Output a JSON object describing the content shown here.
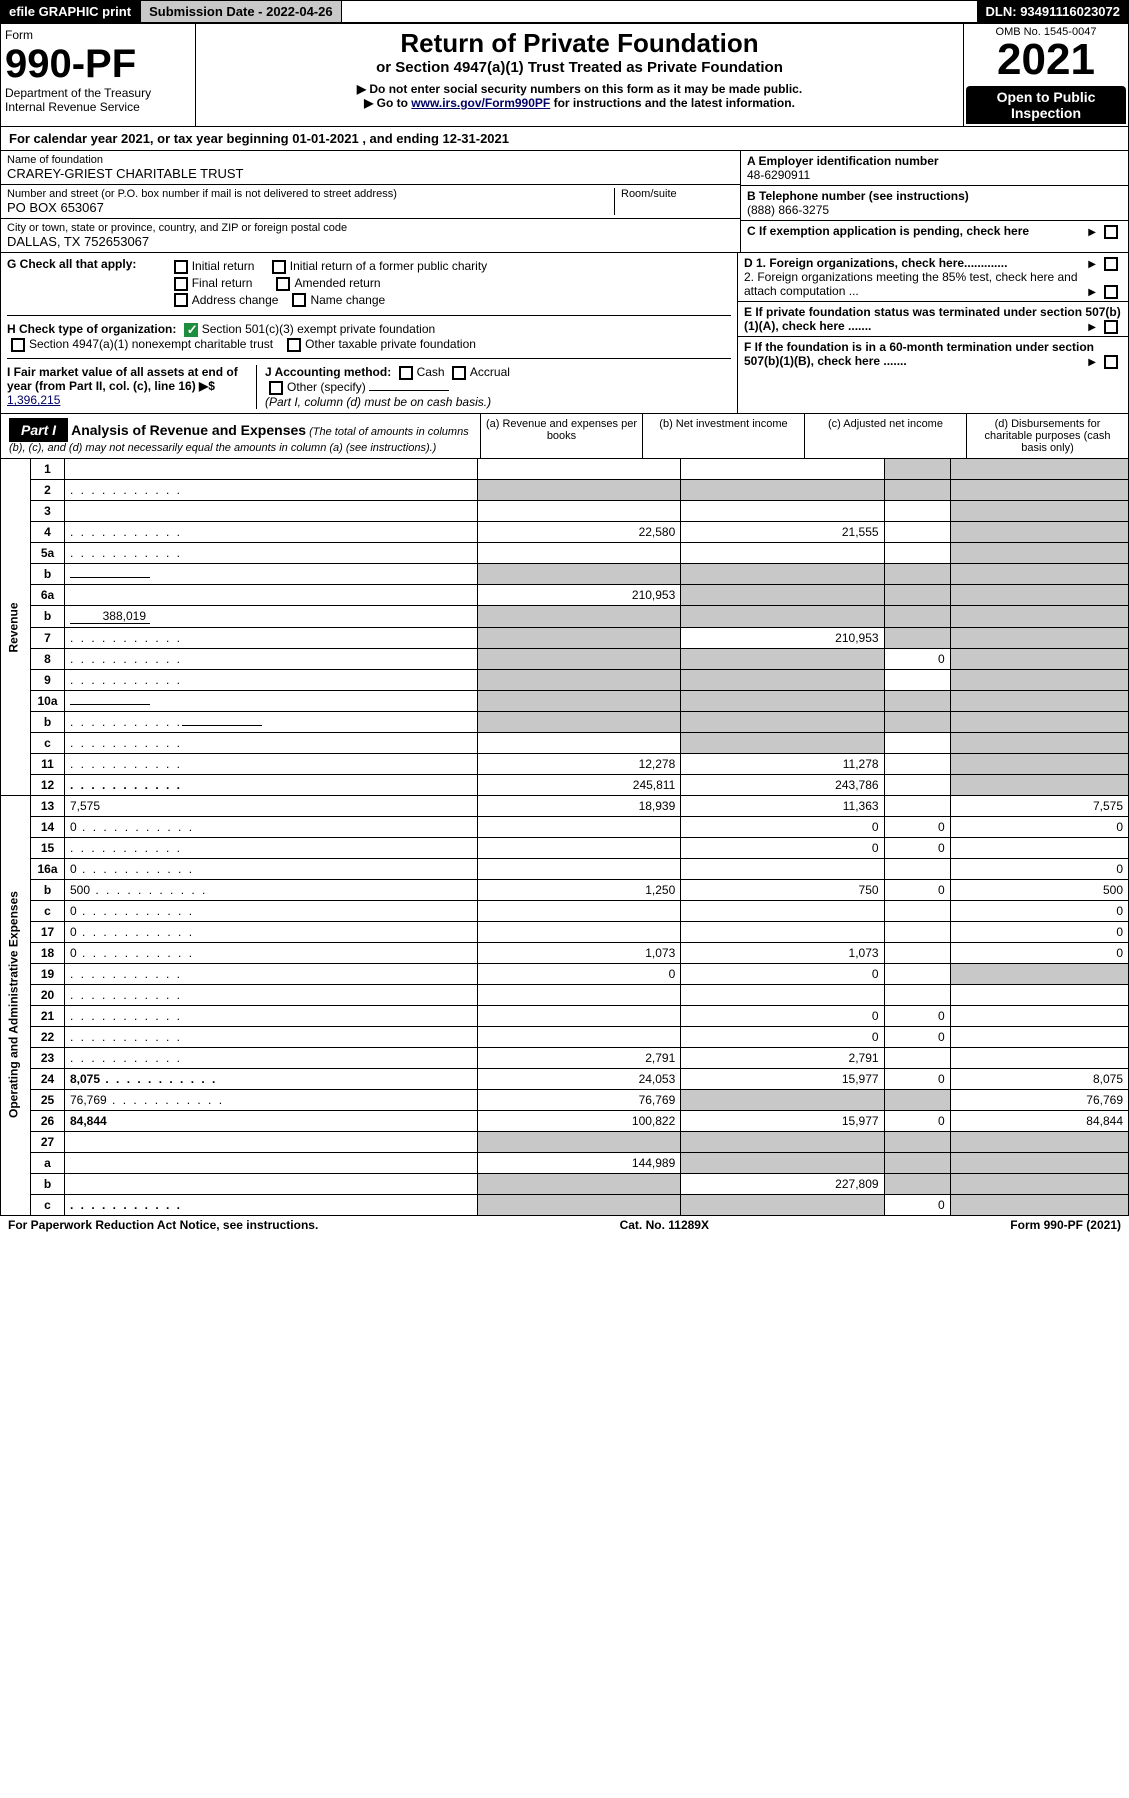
{
  "header": {
    "efile": "efile GRAPHIC print",
    "submission": "Submission Date - 2022-04-26",
    "dln": "DLN: 93491116023072"
  },
  "form": {
    "form_label": "Form",
    "form_num": "990-PF",
    "dept": "Department of the Treasury",
    "irs": "Internal Revenue Service",
    "title": "Return of Private Foundation",
    "subtitle": "or Section 4947(a)(1) Trust Treated as Private Foundation",
    "note1": "▶ Do not enter social security numbers on this form as it may be made public.",
    "note2_pre": "▶ Go to ",
    "note2_link": "www.irs.gov/Form990PF",
    "note2_post": " for instructions and the latest information.",
    "omb": "OMB No. 1545-0047",
    "year": "2021",
    "open": "Open to Public Inspection"
  },
  "calyear": "For calendar year 2021, or tax year beginning 01-01-2021               , and ending 12-31-2021",
  "entity": {
    "name_lbl": "Name of foundation",
    "name": "CRAREY-GRIEST CHARITABLE TRUST",
    "addr_lbl": "Number and street (or P.O. box number if mail is not delivered to street address)",
    "room_lbl": "Room/suite",
    "addr": "PO BOX 653067",
    "city_lbl": "City or town, state or province, country, and ZIP or foreign postal code",
    "city": "DALLAS, TX  752653067",
    "ein_lbl": "A Employer identification number",
    "ein": "48-6290911",
    "tel_lbl": "B Telephone number (see instructions)",
    "tel": "(888) 866-3275",
    "c": "C If exemption application is pending, check here",
    "d1": "D 1. Foreign organizations, check here.............",
    "d2": "2. Foreign organizations meeting the 85% test, check here and attach computation ...",
    "e": "E If private foundation status was terminated under section 507(b)(1)(A), check here .......",
    "f": "F If the foundation is in a 60-month termination under section 507(b)(1)(B), check here .......",
    "g_lbl": "G Check all that apply:",
    "g_opts": [
      "Initial return",
      "Final return",
      "Address change",
      "Initial return of a former public charity",
      "Amended return",
      "Name change"
    ],
    "h_lbl": "H Check type of organization:",
    "h1": "Section 501(c)(3) exempt private foundation",
    "h2": "Section 4947(a)(1) nonexempt charitable trust",
    "h3": "Other taxable private foundation",
    "i_lbl": "I Fair market value of all assets at end of year (from Part II, col. (c), line 16) ▶$ ",
    "i_val": "1,396,215",
    "j_lbl": "J Accounting method:",
    "j_opts": [
      "Cash",
      "Accrual"
    ],
    "j_other": "Other (specify)",
    "j_note": "(Part I, column (d) must be on cash basis.)"
  },
  "part1": {
    "title": "Part I",
    "head": "Analysis of Revenue and Expenses",
    "head_note": "(The total of amounts in columns (b), (c), and (d) may not necessarily equal the amounts in column (a) (see instructions).)",
    "cols": {
      "a": "(a) Revenue and expenses per books",
      "b": "(b) Net investment income",
      "c": "(c) Adjusted net income",
      "d": "(d) Disbursements for charitable purposes (cash basis only)"
    }
  },
  "side": {
    "rev": "Revenue",
    "exp": "Operating and Administrative Expenses"
  },
  "rows": [
    {
      "n": "1",
      "d": "",
      "a": "",
      "b": "",
      "c": "",
      "cf": true,
      "df": true
    },
    {
      "n": "2",
      "d": "",
      "dots": true,
      "a": "",
      "b": "",
      "c": "",
      "af": true,
      "bf": true,
      "cf": true,
      "df": true
    },
    {
      "n": "3",
      "d": "",
      "a": "",
      "b": "",
      "c": "",
      "df": true
    },
    {
      "n": "4",
      "d": "",
      "dots": true,
      "a": "22,580",
      "b": "21,555",
      "c": "",
      "df": true
    },
    {
      "n": "5a",
      "d": "",
      "dots": true,
      "a": "",
      "b": "",
      "c": "",
      "df": true
    },
    {
      "n": "b",
      "d": "",
      "inline": "",
      "a": "",
      "b": "",
      "c": "",
      "af": true,
      "bf": true,
      "cf": true,
      "df": true
    },
    {
      "n": "6a",
      "d": "",
      "a": "210,953",
      "b": "",
      "c": "",
      "bf": true,
      "cf": true,
      "df": true
    },
    {
      "n": "b",
      "d": "",
      "inline": "388,019",
      "a": "",
      "b": "",
      "c": "",
      "af": true,
      "bf": true,
      "cf": true,
      "df": true
    },
    {
      "n": "7",
      "d": "",
      "dots": true,
      "a": "",
      "b": "210,953",
      "c": "",
      "af": true,
      "cf": true,
      "df": true
    },
    {
      "n": "8",
      "d": "",
      "dots": true,
      "a": "",
      "b": "",
      "c": "0",
      "af": true,
      "bf": true,
      "df": true
    },
    {
      "n": "9",
      "d": "",
      "dots": true,
      "a": "",
      "b": "",
      "c": "",
      "af": true,
      "bf": true,
      "df": true
    },
    {
      "n": "10a",
      "d": "",
      "inline": "",
      "a": "",
      "b": "",
      "c": "",
      "af": true,
      "bf": true,
      "cf": true,
      "df": true
    },
    {
      "n": "b",
      "d": "",
      "dots": true,
      "inline": "",
      "a": "",
      "b": "",
      "c": "",
      "af": true,
      "bf": true,
      "cf": true,
      "df": true
    },
    {
      "n": "c",
      "d": "",
      "dots": true,
      "a": "",
      "b": "",
      "c": "",
      "bf": true,
      "df": true
    },
    {
      "n": "11",
      "d": "",
      "dots": true,
      "a": "12,278",
      "b": "11,278",
      "c": "",
      "df": true
    },
    {
      "n": "12",
      "d": "",
      "dots": true,
      "bold": true,
      "a": "245,811",
      "b": "243,786",
      "c": "",
      "df": true
    },
    {
      "n": "13",
      "d": "7,575",
      "a": "18,939",
      "b": "11,363",
      "c": ""
    },
    {
      "n": "14",
      "d": "0",
      "dots": true,
      "a": "",
      "b": "0",
      "c": "0"
    },
    {
      "n": "15",
      "d": "",
      "dots": true,
      "a": "",
      "b": "0",
      "c": "0"
    },
    {
      "n": "16a",
      "d": "0",
      "dots": true,
      "a": "",
      "b": "",
      "c": ""
    },
    {
      "n": "b",
      "d": "500",
      "dots": true,
      "a": "1,250",
      "b": "750",
      "c": "0"
    },
    {
      "n": "c",
      "d": "0",
      "dots": true,
      "a": "",
      "b": "",
      "c": ""
    },
    {
      "n": "17",
      "d": "0",
      "dots": true,
      "a": "",
      "b": "",
      "c": ""
    },
    {
      "n": "18",
      "d": "0",
      "dots": true,
      "a": "1,073",
      "b": "1,073",
      "c": ""
    },
    {
      "n": "19",
      "d": "",
      "dots": true,
      "a": "0",
      "b": "0",
      "c": "",
      "df": true
    },
    {
      "n": "20",
      "d": "",
      "dots": true,
      "a": "",
      "b": "",
      "c": ""
    },
    {
      "n": "21",
      "d": "",
      "dots": true,
      "a": "",
      "b": "0",
      "c": "0"
    },
    {
      "n": "22",
      "d": "",
      "dots": true,
      "a": "",
      "b": "0",
      "c": "0"
    },
    {
      "n": "23",
      "d": "",
      "dots": true,
      "a": "2,791",
      "b": "2,791",
      "c": ""
    },
    {
      "n": "24",
      "d": "8,075",
      "dots": true,
      "bold": true,
      "a": "24,053",
      "b": "15,977",
      "c": "0"
    },
    {
      "n": "25",
      "d": "76,769",
      "dots": true,
      "a": "76,769",
      "b": "",
      "c": "",
      "bf": true,
      "cf": true
    },
    {
      "n": "26",
      "d": "84,844",
      "bold": true,
      "a": "100,822",
      "b": "15,977",
      "c": "0"
    },
    {
      "n": "27",
      "d": "",
      "a": "",
      "b": "",
      "c": "",
      "af": true,
      "bf": true,
      "cf": true,
      "df": true
    },
    {
      "n": "a",
      "d": "",
      "bold": true,
      "a": "144,989",
      "b": "",
      "c": "",
      "bf": true,
      "cf": true,
      "df": true
    },
    {
      "n": "b",
      "d": "",
      "bold": true,
      "a": "",
      "b": "227,809",
      "c": "",
      "af": true,
      "cf": true,
      "df": true
    },
    {
      "n": "c",
      "d": "",
      "dots": true,
      "bold": true,
      "a": "",
      "b": "",
      "c": "0",
      "af": true,
      "bf": true,
      "df": true
    }
  ],
  "footer": {
    "left": "For Paperwork Reduction Act Notice, see instructions.",
    "mid": "Cat. No. 11289X",
    "right": "Form 990-PF (2021)"
  }
}
